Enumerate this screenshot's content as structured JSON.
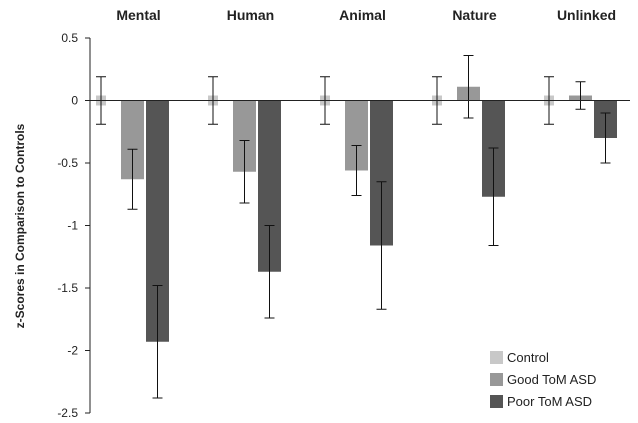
{
  "chart_data": {
    "type": "bar",
    "categories": [
      "Mental",
      "Human",
      "Animal",
      "Nature",
      "Unlinked"
    ],
    "ylabel": "z-Scores in Comparison to Controls",
    "ylim": [
      -2.5,
      0.5
    ],
    "yticks": [
      0.5,
      0,
      -0.5,
      -1,
      -1.5,
      -2,
      -2.5
    ],
    "ytick_labels": [
      "0.5",
      "0",
      "-0.5",
      "-1",
      "-1.5",
      "-2",
      "-2.5"
    ],
    "grid": false,
    "legend_position": "bottom-right",
    "series": [
      {
        "name": "Control",
        "color": "#c8c8c8",
        "values": [
          0,
          0,
          0,
          0,
          0
        ],
        "error": [
          0.19,
          0.19,
          0.19,
          0.19,
          0.19
        ]
      },
      {
        "name": "Good ToM ASD",
        "color": "#989898",
        "values": [
          -0.63,
          -0.57,
          -0.56,
          0.11,
          0.04
        ],
        "error": [
          0.24,
          0.25,
          0.2,
          0.25,
          0.11
        ]
      },
      {
        "name": "Poor ToM ASD",
        "color": "#555555",
        "values": [
          -1.93,
          -1.37,
          -1.16,
          -0.77,
          -0.3
        ],
        "error": [
          0.45,
          0.37,
          0.51,
          0.39,
          0.2
        ]
      }
    ]
  }
}
